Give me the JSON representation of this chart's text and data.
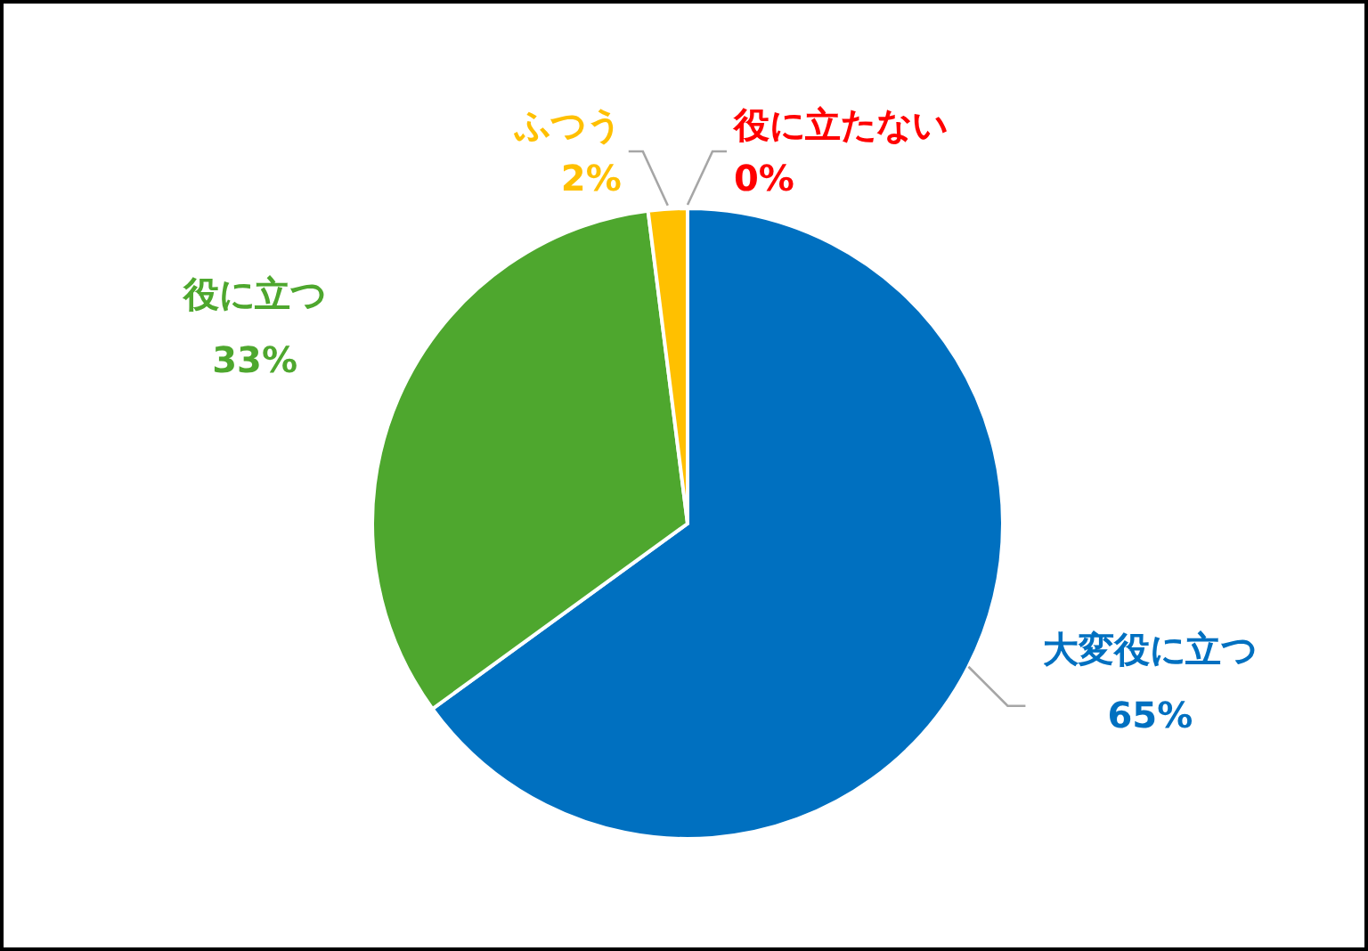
{
  "chart_data": {
    "type": "pie",
    "categories": [
      "大変役に立つ",
      "役に立つ",
      "ふつう",
      "役に立たない"
    ],
    "values": [
      65,
      33,
      2,
      0
    ],
    "value_labels": [
      "65%",
      "33%",
      "2%",
      "0%"
    ],
    "colors": [
      "#0070c0",
      "#4ea72e",
      "#ffc000",
      "#ff0000"
    ]
  }
}
